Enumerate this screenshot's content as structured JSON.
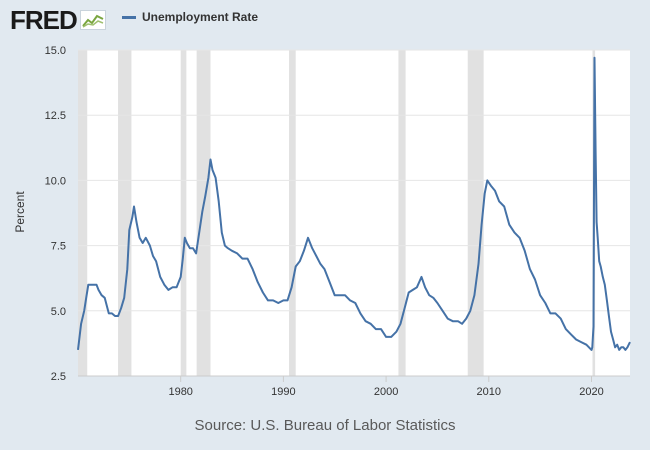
{
  "header": {
    "logo_text": "FRED",
    "legend_label": "Unemployment Rate"
  },
  "footer": {
    "source": "Source: U.S. Bureau of Labor Statistics"
  },
  "colors": {
    "background": "#e1e9f0",
    "plot_background": "#ffffff",
    "series": "#4572a7",
    "recession_band": "#e1e1e1"
  },
  "chart_data": {
    "type": "line",
    "title": "",
    "xlabel": "",
    "ylabel": "Percent",
    "xlim": [
      1970.0,
      2023.75
    ],
    "ylim": [
      2.5,
      15.0
    ],
    "x_ticks": [
      1980,
      1990,
      2000,
      2010,
      2020
    ],
    "y_ticks": [
      2.5,
      5.0,
      7.5,
      10.0,
      12.5,
      15.0
    ],
    "y_tick_labels": [
      "2.5",
      "5.0",
      "7.5",
      "10.0",
      "12.5",
      "15.0"
    ],
    "grid": "horizontal",
    "legend": "top-left",
    "recessions": [
      [
        1969.92,
        1970.9
      ],
      [
        1973.9,
        1975.2
      ],
      [
        1980.0,
        1980.55
      ],
      [
        1981.55,
        1982.9
      ],
      [
        1990.55,
        1991.2
      ],
      [
        2001.2,
        2001.9
      ],
      [
        2007.95,
        2009.5
      ],
      [
        2020.1,
        2020.35
      ]
    ],
    "series": [
      {
        "name": "Unemployment Rate",
        "x": [
          1970.0,
          1970.3,
          1970.6,
          1970.8,
          1971.0,
          1971.2,
          1971.5,
          1971.8,
          1972.0,
          1972.3,
          1972.6,
          1973.0,
          1973.3,
          1973.6,
          1973.9,
          1974.2,
          1974.5,
          1974.8,
          1975.0,
          1975.3,
          1975.45,
          1975.7,
          1976.0,
          1976.3,
          1976.6,
          1977.0,
          1977.3,
          1977.6,
          1978.0,
          1978.4,
          1978.8,
          1979.2,
          1979.6,
          1980.0,
          1980.2,
          1980.4,
          1980.6,
          1980.9,
          1981.2,
          1981.5,
          1981.8,
          1982.1,
          1982.4,
          1982.7,
          1982.9,
          1983.1,
          1983.4,
          1983.7,
          1984.0,
          1984.3,
          1984.6,
          1985.0,
          1985.5,
          1986.0,
          1986.5,
          1987.0,
          1987.5,
          1988.0,
          1988.5,
          1989.0,
          1989.5,
          1990.0,
          1990.4,
          1990.8,
          1991.2,
          1991.6,
          1992.0,
          1992.4,
          1992.8,
          1993.2,
          1993.6,
          1994.0,
          1994.5,
          1995.0,
          1995.5,
          1996.0,
          1996.5,
          1997.0,
          1997.5,
          1998.0,
          1998.5,
          1999.0,
          1999.5,
          2000.0,
          2000.5,
          2001.0,
          2001.4,
          2001.8,
          2002.2,
          2002.6,
          2003.0,
          2003.45,
          2003.8,
          2004.2,
          2004.6,
          2005.0,
          2005.5,
          2006.0,
          2006.5,
          2007.0,
          2007.4,
          2007.8,
          2008.2,
          2008.6,
          2009.0,
          2009.3,
          2009.6,
          2009.85,
          2010.2,
          2010.6,
          2011.0,
          2011.5,
          2012.0,
          2012.5,
          2013.0,
          2013.5,
          2014.0,
          2014.5,
          2015.0,
          2015.5,
          2016.0,
          2016.5,
          2017.0,
          2017.5,
          2018.0,
          2018.5,
          2019.0,
          2019.5,
          2020.0,
          2020.08,
          2020.2,
          2020.29,
          2020.4,
          2020.5,
          2020.6,
          2020.75,
          2020.9,
          2021.1,
          2021.3,
          2021.5,
          2021.7,
          2021.9,
          2022.1,
          2022.3,
          2022.5,
          2022.7,
          2022.9,
          2023.1,
          2023.3,
          2023.5,
          2023.75
        ],
        "values": [
          3.5,
          4.5,
          5.0,
          5.5,
          6.0,
          6.0,
          6.0,
          6.0,
          5.8,
          5.6,
          5.5,
          4.9,
          4.9,
          4.8,
          4.8,
          5.1,
          5.5,
          6.6,
          8.1,
          8.6,
          9.0,
          8.4,
          7.8,
          7.6,
          7.8,
          7.5,
          7.1,
          6.9,
          6.3,
          6.0,
          5.8,
          5.9,
          5.9,
          6.3,
          7.0,
          7.8,
          7.6,
          7.4,
          7.4,
          7.2,
          8.0,
          8.8,
          9.4,
          10.1,
          10.8,
          10.4,
          10.1,
          9.2,
          8.0,
          7.5,
          7.4,
          7.3,
          7.2,
          7.0,
          7.0,
          6.6,
          6.1,
          5.7,
          5.4,
          5.4,
          5.3,
          5.4,
          5.4,
          5.9,
          6.7,
          6.9,
          7.3,
          7.8,
          7.4,
          7.1,
          6.8,
          6.6,
          6.1,
          5.6,
          5.6,
          5.6,
          5.4,
          5.3,
          4.9,
          4.6,
          4.5,
          4.3,
          4.3,
          4.0,
          4.0,
          4.2,
          4.5,
          5.1,
          5.7,
          5.8,
          5.9,
          6.3,
          5.9,
          5.6,
          5.5,
          5.3,
          5.0,
          4.7,
          4.6,
          4.6,
          4.5,
          4.7,
          5.0,
          5.6,
          6.8,
          8.3,
          9.5,
          10.0,
          9.8,
          9.6,
          9.2,
          9.0,
          8.3,
          8.0,
          7.8,
          7.3,
          6.6,
          6.2,
          5.6,
          5.3,
          4.9,
          4.9,
          4.7,
          4.3,
          4.1,
          3.9,
          3.8,
          3.7,
          3.5,
          3.6,
          4.4,
          14.7,
          11.1,
          8.4,
          7.8,
          6.9,
          6.7,
          6.3,
          6.0,
          5.4,
          4.8,
          4.2,
          3.9,
          3.6,
          3.7,
          3.5,
          3.6,
          3.6,
          3.5,
          3.6,
          3.8
        ]
      }
    ]
  }
}
